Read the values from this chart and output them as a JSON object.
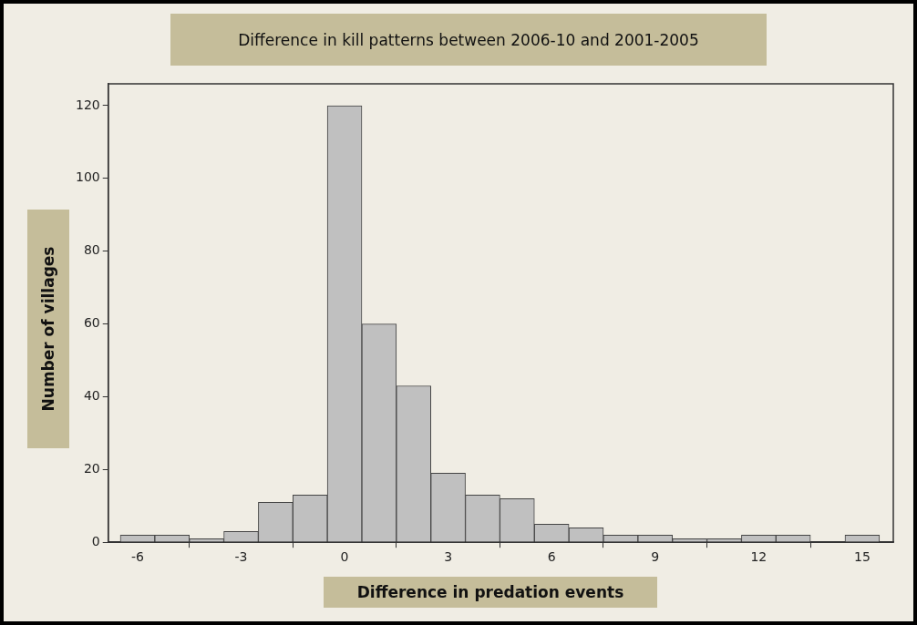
{
  "chart_data": {
    "type": "histogram",
    "title": "Difference in kill patterns between 2006-10 and 2001-2005",
    "xlabel": "Difference in predation events",
    "ylabel": "Number of villages",
    "bins": [
      -6.5,
      -5.5,
      -4.5,
      -3.5,
      -2.5,
      -1.5,
      -0.5,
      0.5,
      1.5,
      2.5,
      3.5,
      4.5,
      5.5,
      6.5,
      7.5,
      8.5,
      9.5,
      10.5,
      11.5,
      12.5,
      13.5,
      14.5,
      15.5
    ],
    "values": [
      2,
      2,
      1,
      3,
      11,
      13,
      120,
      60,
      43,
      19,
      13,
      12,
      5,
      4,
      2,
      2,
      1,
      1,
      2,
      2,
      0,
      2
    ],
    "color": "#c0c0c0",
    "xlim": [
      -6.85,
      15.9
    ],
    "xticks": [
      -6,
      -3,
      0,
      3,
      6,
      9,
      12,
      15
    ],
    "ylim": [
      0,
      126
    ],
    "yticks": [
      0,
      20,
      40,
      60,
      80,
      100,
      120
    ],
    "grid": false,
    "legend": false
  }
}
